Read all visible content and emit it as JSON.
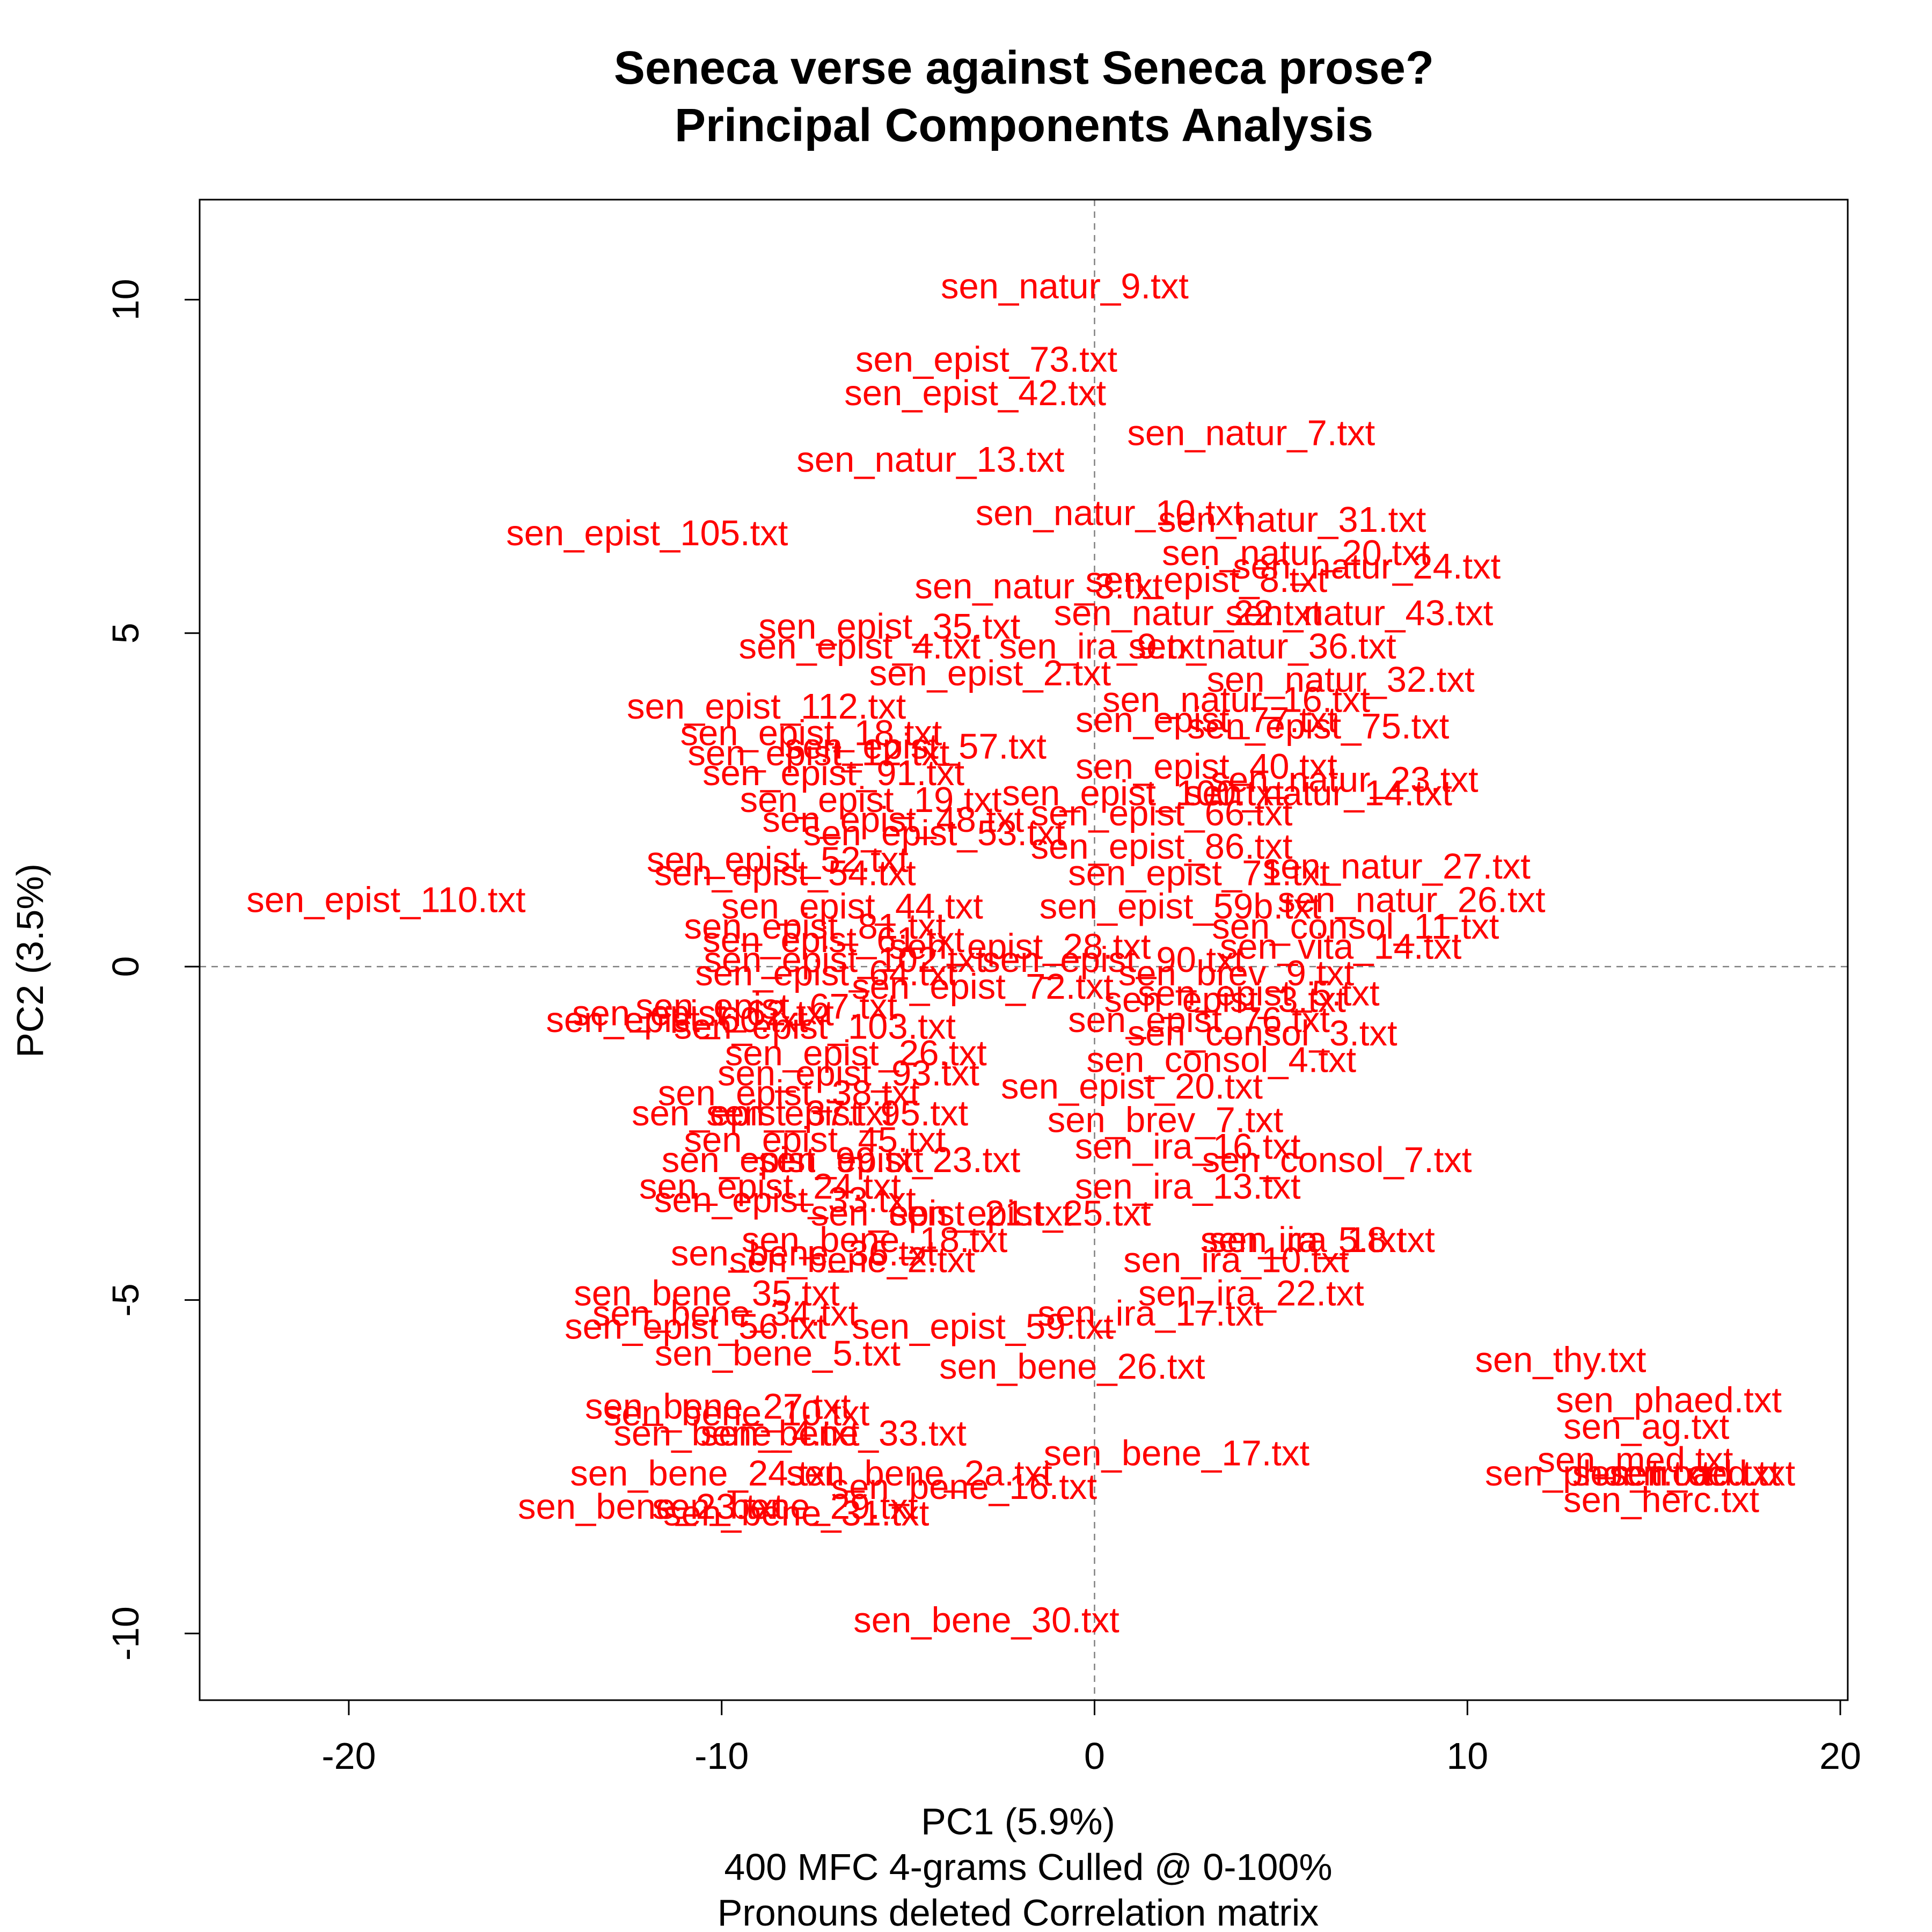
{
  "chart_data": {
    "type": "scatter",
    "title": [
      "Seneca verse against Seneca prose?",
      "Principal Components Analysis"
    ],
    "xlabel": "PC1 (5.9%)",
    "ylabel": "PC2 (3.5%)",
    "subtitle": [
      "400 MFC 4-grams Culled @ 0-100%",
      "Pronouns deleted Correlation matrix"
    ],
    "xlim": [
      -24,
      20.2
    ],
    "ylim": [
      -11,
      11.5
    ],
    "xticks": [
      -20,
      -10,
      0,
      10,
      20
    ],
    "yticks": [
      -10,
      -5,
      0,
      5,
      10
    ],
    "reference_lines": {
      "x": 0,
      "y": 0,
      "style": "dashed"
    },
    "grid": false,
    "legend": "none",
    "label_color": "#ff0000",
    "points": [
      {
        "label": "sen_natur_9.txt",
        "x": -0.8,
        "y": 10.2
      },
      {
        "label": "sen_epist_73.txt",
        "x": -2.9,
        "y": 9.1
      },
      {
        "label": "sen_epist_42.txt",
        "x": -3.2,
        "y": 8.6
      },
      {
        "label": "sen_natur_7.txt",
        "x": 4.2,
        "y": 8.0
      },
      {
        "label": "sen_natur_13.txt",
        "x": -4.4,
        "y": 7.6
      },
      {
        "label": "sen_natur_10.txt",
        "x": 0.4,
        "y": 6.8
      },
      {
        "label": "sen_natur_31.txt",
        "x": 5.3,
        "y": 6.7
      },
      {
        "label": "sen_epist_105.txt",
        "x": -12.0,
        "y": 6.5
      },
      {
        "label": "sen_natur_20.txt",
        "x": 5.4,
        "y": 6.2
      },
      {
        "label": "sen_natur_24.txt",
        "x": 7.3,
        "y": 6.0
      },
      {
        "label": "sen_natur_3.txt",
        "x": -1.5,
        "y": 5.7
      },
      {
        "label": "sen_epist_8.txt",
        "x": 3.0,
        "y": 5.8
      },
      {
        "label": "sen_natur_43.txt",
        "x": 7.1,
        "y": 5.3
      },
      {
        "label": "sen_epist_35.txt",
        "x": -5.5,
        "y": 5.1
      },
      {
        "label": "sen_natur_22.txt",
        "x": 2.5,
        "y": 5.3
      },
      {
        "label": "sen_ira_9.txt",
        "x": 0.2,
        "y": 4.8
      },
      {
        "label": "sen_natur_36.txt",
        "x": 4.5,
        "y": 4.8
      },
      {
        "label": "sen_epist_4.txt",
        "x": -6.3,
        "y": 4.8
      },
      {
        "label": "sen_natur_32.txt",
        "x": 6.6,
        "y": 4.3
      },
      {
        "label": "sen_epist_2.txt",
        "x": -2.8,
        "y": 4.4
      },
      {
        "label": "sen_epist_112.txt",
        "x": -8.8,
        "y": 3.9
      },
      {
        "label": "sen_natur_16.txt",
        "x": 3.8,
        "y": 4.0
      },
      {
        "label": "sen_epist_77.txt",
        "x": 3.0,
        "y": 3.7
      },
      {
        "label": "sen_epist_75.txt",
        "x": 6.0,
        "y": 3.6
      },
      {
        "label": "sen_epist_40.txt",
        "x": 3.0,
        "y": 3.0
      },
      {
        "label": "sen_epist_18.txt",
        "x": -7.6,
        "y": 3.5
      },
      {
        "label": "sen_epist_12.txt",
        "x": -7.4,
        "y": 3.2
      },
      {
        "label": "sen_epist_57.txt",
        "x": -4.8,
        "y": 3.3
      },
      {
        "label": "sen_epist_91.txt",
        "x": -7.0,
        "y": 2.9
      },
      {
        "label": "sen_natur_23.txt",
        "x": 6.7,
        "y": 2.8
      },
      {
        "label": "sen_natur_14.txt",
        "x": 6.0,
        "y": 2.6
      },
      {
        "label": "sen_epist_100.txt",
        "x": 1.3,
        "y": 2.6
      },
      {
        "label": "sen_epist_19.txt",
        "x": -6.0,
        "y": 2.5
      },
      {
        "label": "sen_epist_48.txt",
        "x": -5.4,
        "y": 2.2
      },
      {
        "label": "sen_epist_66.txt",
        "x": 1.8,
        "y": 2.3
      },
      {
        "label": "sen_epist_53.txt",
        "x": -4.3,
        "y": 2.0
      },
      {
        "label": "sen_epist_86.txt",
        "x": 1.8,
        "y": 1.8
      },
      {
        "label": "sen_natur_27.txt",
        "x": 8.1,
        "y": 1.5
      },
      {
        "label": "sen_epist_52.txt",
        "x": -8.5,
        "y": 1.6
      },
      {
        "label": "sen_epist_54.txt",
        "x": -8.3,
        "y": 1.4
      },
      {
        "label": "sen_epist_71.txt",
        "x": 2.8,
        "y": 1.4
      },
      {
        "label": "sen_epist_110.txt",
        "x": -19.0,
        "y": 1.0
      },
      {
        "label": "sen_natur_26.txt",
        "x": 8.5,
        "y": 1.0
      },
      {
        "label": "sen_epist_44.txt",
        "x": -6.5,
        "y": 0.9
      },
      {
        "label": "sen_epist_59b.txt",
        "x": 2.3,
        "y": 0.9
      },
      {
        "label": "sen_consol_11.txt",
        "x": 7.0,
        "y": 0.6
      },
      {
        "label": "sen_epist_81.txt",
        "x": -7.5,
        "y": 0.6
      },
      {
        "label": "sen_epist_61.txt",
        "x": -7.0,
        "y": 0.4
      },
      {
        "label": "sen_vita_14.txt",
        "x": 6.6,
        "y": 0.3
      },
      {
        "label": "sen_epist_28.txt",
        "x": -2.0,
        "y": 0.3
      },
      {
        "label": "sen_epist_90.txt",
        "x": 0.5,
        "y": 0.1
      },
      {
        "label": "sen_epist_102.txt",
        "x": -6.7,
        "y": 0.1
      },
      {
        "label": "sen_epist_64.txt",
        "x": -7.2,
        "y": -0.1
      },
      {
        "label": "sen_brev_9.txt",
        "x": 3.8,
        "y": -0.1
      },
      {
        "label": "sen_epist_72.txt",
        "x": -3.0,
        "y": -0.3
      },
      {
        "label": "sen_epist_5.txt",
        "x": 4.4,
        "y": -0.4
      },
      {
        "label": "sen_epist_67.txt",
        "x": -8.8,
        "y": -0.6
      },
      {
        "label": "sen_epist_62.txt",
        "x": -10.5,
        "y": -0.7
      },
      {
        "label": "sen_epist_60.txt",
        "x": -11.2,
        "y": -0.8
      },
      {
        "label": "sen_epist_3.txt",
        "x": 3.5,
        "y": -0.5
      },
      {
        "label": "sen_epist_103.txt",
        "x": -7.5,
        "y": -0.9
      },
      {
        "label": "sen_epist_76.txt",
        "x": 2.8,
        "y": -0.8
      },
      {
        "label": "sen_consol_3.txt",
        "x": 4.5,
        "y": -1.0
      },
      {
        "label": "sen_epist_26.txt",
        "x": -6.4,
        "y": -1.3
      },
      {
        "label": "sen_consol_4.txt",
        "x": 3.4,
        "y": -1.4
      },
      {
        "label": "sen_epist_93.txt",
        "x": -6.6,
        "y": -1.6
      },
      {
        "label": "sen_epist_38.txt",
        "x": -8.2,
        "y": -1.9
      },
      {
        "label": "sen_epist_20.txt",
        "x": 1.0,
        "y": -1.8
      },
      {
        "label": "sen_epist_37.txt",
        "x": -8.9,
        "y": -2.2
      },
      {
        "label": "sen_epist_95.txt",
        "x": -6.9,
        "y": -2.2
      },
      {
        "label": "sen_brev_7.txt",
        "x": 1.9,
        "y": -2.3
      },
      {
        "label": "sen_epist_45.txt",
        "x": -7.5,
        "y": -2.6
      },
      {
        "label": "sen_ira_16.txt",
        "x": 2.5,
        "y": -2.7
      },
      {
        "label": "sen_consol_7.txt",
        "x": 6.5,
        "y": -2.9
      },
      {
        "label": "sen_epist_99.txt",
        "x": -8.1,
        "y": -2.9
      },
      {
        "label": "sen_epist_23.txt",
        "x": -5.5,
        "y": -2.9
      },
      {
        "label": "sen_epist_24.txt",
        "x": -8.7,
        "y": -3.3
      },
      {
        "label": "sen_ira_13.txt",
        "x": 2.5,
        "y": -3.3
      },
      {
        "label": "sen_epist_33.txt",
        "x": -8.3,
        "y": -3.5
      },
      {
        "label": "sen_epist_21.txt",
        "x": -4.1,
        "y": -3.7
      },
      {
        "label": "sen_epist_25.txt",
        "x": -2.0,
        "y": -3.7
      },
      {
        "label": "sen_bene_18.txt",
        "x": -5.9,
        "y": -4.1
      },
      {
        "label": "sen_ira_5.txt",
        "x": 5.6,
        "y": -4.1
      },
      {
        "label": "sen_ira_18.txt",
        "x": 6.1,
        "y": -4.1
      },
      {
        "label": "sen_bene_36.txt",
        "x": -7.8,
        "y": -4.3
      },
      {
        "label": "sen_bene_2.txt",
        "x": -6.5,
        "y": -4.4
      },
      {
        "label": "sen_ira_10.txt",
        "x": 3.8,
        "y": -4.4
      },
      {
        "label": "sen_ira_22.txt",
        "x": 4.2,
        "y": -4.9
      },
      {
        "label": "sen_bene_35.txt",
        "x": -10.4,
        "y": -4.9
      },
      {
        "label": "sen_ira_17.txt",
        "x": 1.5,
        "y": -5.2
      },
      {
        "label": "sen_bene_34.txt",
        "x": -9.9,
        "y": -5.2
      },
      {
        "label": "sen_epist_56.txt",
        "x": -10.7,
        "y": -5.4
      },
      {
        "label": "sen_epist_59.txt",
        "x": -3.0,
        "y": -5.4
      },
      {
        "label": "sen_bene_5.txt",
        "x": -8.5,
        "y": -5.8
      },
      {
        "label": "sen_bene_26.txt",
        "x": -0.6,
        "y": -6.0
      },
      {
        "label": "sen_thy.txt",
        "x": 12.5,
        "y": -5.9
      },
      {
        "label": "sen_phaed.txt",
        "x": 15.4,
        "y": -6.5
      },
      {
        "label": "sen_bene_27.txt",
        "x": -10.1,
        "y": -6.6
      },
      {
        "label": "sen_bene_10.txt",
        "x": -9.6,
        "y": -6.7
      },
      {
        "label": "sen_ag.txt",
        "x": 14.8,
        "y": -6.9
      },
      {
        "label": "sen_bene_4.txt",
        "x": -9.6,
        "y": -7.0
      },
      {
        "label": "sen_bene_33.txt",
        "x": -7.0,
        "y": -7.0
      },
      {
        "label": "sen_bene_17.txt",
        "x": 2.2,
        "y": -7.3
      },
      {
        "label": "sen_med.txt",
        "x": 14.5,
        "y": -7.4
      },
      {
        "label": "sen_phoen.txt",
        "x": 13.5,
        "y": -7.6
      },
      {
        "label": "sen_troad.txt",
        "x": 15.6,
        "y": -7.6
      },
      {
        "label": "sen_oed.txt",
        "x": 16.3,
        "y": -7.6
      },
      {
        "label": "sen_herc.txt",
        "x": 15.2,
        "y": -8.0
      },
      {
        "label": "sen_bene_24.txt",
        "x": -10.5,
        "y": -7.6
      },
      {
        "label": "sen_bene_2a.txt",
        "x": -4.7,
        "y": -7.6
      },
      {
        "label": "sen_bene_16.txt",
        "x": -3.5,
        "y": -7.8
      },
      {
        "label": "sen_bene_23.txt",
        "x": -11.9,
        "y": -8.1
      },
      {
        "label": "sen_bene_29.txt",
        "x": -8.3,
        "y": -8.1
      },
      {
        "label": "sen_bene_31.txt",
        "x": -8.0,
        "y": -8.2
      },
      {
        "label": "sen_bene_30.txt",
        "x": -2.9,
        "y": -9.8
      }
    ]
  }
}
